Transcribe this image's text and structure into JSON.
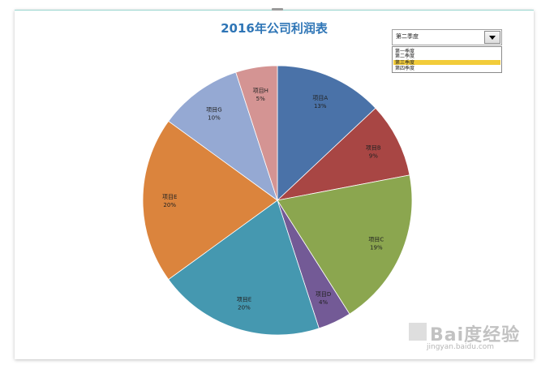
{
  "chart_data": {
    "type": "pie",
    "title": "2016年公司利润表",
    "slices": [
      {
        "label": "项目A",
        "value": 13,
        "pct_text": "13%",
        "color": "#4a72a8"
      },
      {
        "label": "项目B",
        "value": 9,
        "pct_text": "9%",
        "color": "#a84644"
      },
      {
        "label": "项目C",
        "value": 19,
        "pct_text": "19%",
        "color": "#8ba64f"
      },
      {
        "label": "项目D",
        "value": 4,
        "pct_text": "4%",
        "color": "#735a96"
      },
      {
        "label": "项目E",
        "value": 20,
        "pct_text": "20%",
        "color": "#4598b0"
      },
      {
        "label": "项目E",
        "value": 20,
        "pct_text": "20%",
        "color": "#db843d"
      },
      {
        "label": "项目G",
        "value": 10,
        "pct_text": "10%",
        "color": "#95a9d3"
      },
      {
        "label": "项目H",
        "value": 5,
        "pct_text": "5%",
        "color": "#d49493"
      }
    ]
  },
  "selector": {
    "value": "第二季度",
    "options": [
      "第一季度",
      "第二季度",
      "第三季度",
      "第四季度"
    ],
    "highlighted_index": 2
  },
  "watermark": {
    "logo": "Bai度经验",
    "url": "jingyan.baidu.com"
  }
}
